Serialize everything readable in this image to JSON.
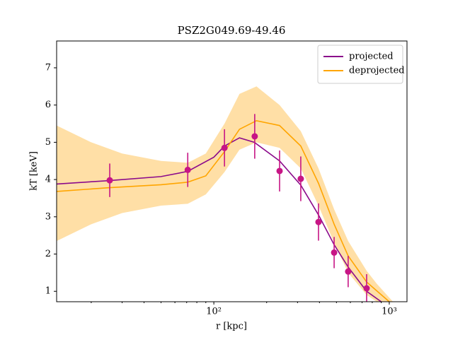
{
  "chart_data": {
    "type": "line",
    "title": "PSZ2G049.69-49.46",
    "xlabel": "r [kpc]",
    "ylabel": "kT [keV]",
    "xscale": "log",
    "xlim": [
      12.7,
      1262
    ],
    "ylim": [
      0.72,
      7.72
    ],
    "xticks": [
      {
        "value": 100,
        "label": "10²"
      },
      {
        "value": 1000,
        "label": "10³"
      }
    ],
    "xminorticks": [
      20,
      30,
      40,
      50,
      60,
      70,
      80,
      90,
      200,
      300,
      400,
      500,
      600,
      700,
      800,
      900
    ],
    "yticks": [
      1,
      2,
      3,
      4,
      5,
      6,
      7
    ],
    "legend": "upper right",
    "band": {
      "color": "#ffdfa6",
      "x": [
        12.7,
        20,
        30,
        50,
        71,
        90,
        115,
        140,
        175,
        237,
        313,
        395,
        485,
        583,
        743,
        850,
        1050
      ],
      "lower": [
        2.35,
        2.8,
        3.1,
        3.3,
        3.35,
        3.6,
        4.2,
        4.8,
        5.0,
        4.85,
        4.3,
        3.3,
        2.3,
        1.5,
        0.9,
        0.72,
        null
      ],
      "upper": [
        5.45,
        5.0,
        4.7,
        4.5,
        4.45,
        4.7,
        5.5,
        6.3,
        6.5,
        6.0,
        5.3,
        4.3,
        3.2,
        2.35,
        1.55,
        1.2,
        0.72
      ]
    },
    "series": [
      {
        "name": "projected",
        "color": "#8b0a8b",
        "x": [
          12.7,
          25,
          50,
          71,
          100,
          115,
          140,
          170,
          237,
          313,
          395,
          485,
          583,
          743,
          900
        ],
        "values": [
          3.88,
          3.97,
          4.08,
          4.22,
          4.6,
          4.9,
          5.12,
          5.0,
          4.5,
          3.85,
          3.05,
          2.25,
          1.65,
          1.0,
          0.72
        ]
      },
      {
        "name": "deprojected",
        "color": "#ffa500",
        "x": [
          12.7,
          25,
          50,
          71,
          90,
          115,
          140,
          175,
          237,
          313,
          395,
          485,
          583,
          743,
          1000
        ],
        "values": [
          3.68,
          3.78,
          3.86,
          3.93,
          4.1,
          4.75,
          5.35,
          5.58,
          5.45,
          4.9,
          3.9,
          2.8,
          1.95,
          1.25,
          0.72
        ]
      }
    ],
    "points": {
      "color": "#c71585",
      "x": [
        25.5,
        71,
        115,
        171,
        237,
        313,
        395,
        485,
        583,
        743
      ],
      "values": [
        3.98,
        4.26,
        4.85,
        5.16,
        4.23,
        4.02,
        2.86,
        2.04,
        1.53,
        1.08
      ],
      "errors": [
        0.45,
        0.46,
        0.5,
        0.6,
        0.55,
        0.6,
        0.5,
        0.42,
        0.42,
        0.38
      ]
    }
  }
}
